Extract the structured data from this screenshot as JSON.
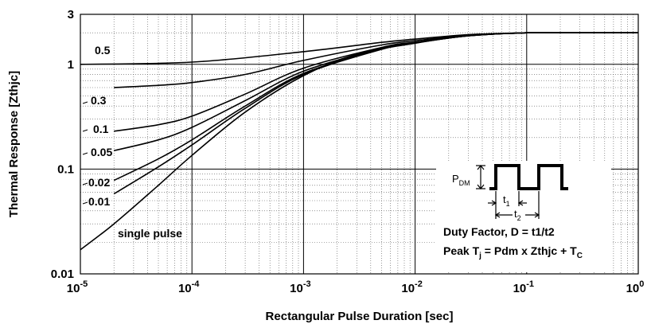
{
  "chart_data": {
    "type": "line",
    "title": "",
    "xlabel": "Rectangular Pulse Duration [sec]",
    "ylabel": "Thermal Response [Zthjc]",
    "xscale": "log",
    "yscale": "log",
    "xlim": [
      1e-05,
      1
    ],
    "ylim": [
      0.01,
      3
    ],
    "grid": true,
    "x_tick_labels": [
      {
        "base": "10",
        "exp": "-5"
      },
      {
        "base": "10",
        "exp": "-4"
      },
      {
        "base": "10",
        "exp": "-3"
      },
      {
        "base": "10",
        "exp": "-2"
      },
      {
        "base": "10",
        "exp": "-1"
      },
      {
        "base": "10",
        "exp": "0"
      }
    ],
    "y_tick_labels": [
      "3",
      "1",
      "0.1",
      "0.01"
    ],
    "series": [
      {
        "name": "0.5",
        "x": [
          1e-05,
          0.0001,
          0.001,
          0.005,
          0.01,
          0.03,
          0.1,
          0.2,
          1
        ],
        "y": [
          1.0,
          1.05,
          1.32,
          1.62,
          1.74,
          1.92,
          2.0,
          2.0,
          2.0
        ]
      },
      {
        "name": "0.3",
        "x": [
          2e-05,
          5e-05,
          0.0001,
          0.0003,
          0.001,
          0.005,
          0.01,
          0.03,
          0.1,
          0.2,
          1
        ],
        "y": [
          0.6,
          0.63,
          0.67,
          0.8,
          1.09,
          1.53,
          1.68,
          1.9,
          2.0,
          2.0,
          2.0
        ]
      },
      {
        "name": "0.1",
        "x": [
          2e-05,
          5e-05,
          0.0001,
          0.0003,
          0.001,
          0.005,
          0.01,
          0.03,
          0.1,
          0.2,
          1
        ],
        "y": [
          0.23,
          0.265,
          0.32,
          0.52,
          0.92,
          1.45,
          1.63,
          1.88,
          2.0,
          2.0,
          2.0
        ]
      },
      {
        "name": "0.05",
        "x": [
          2e-05,
          5e-05,
          0.0001,
          0.0003,
          0.001,
          0.005,
          0.01,
          0.03,
          0.1,
          0.2,
          1
        ],
        "y": [
          0.15,
          0.19,
          0.25,
          0.45,
          0.86,
          1.42,
          1.61,
          1.87,
          2.0,
          2.0,
          2.0
        ]
      },
      {
        "name": "0.02",
        "x": [
          2e-05,
          5e-05,
          0.0001,
          0.0003,
          0.001,
          0.005,
          0.01,
          0.03,
          0.1,
          0.2,
          1
        ],
        "y": [
          0.078,
          0.125,
          0.19,
          0.4,
          0.82,
          1.4,
          1.6,
          1.87,
          2.0,
          2.0,
          2.0
        ]
      },
      {
        "name": "0.01",
        "x": [
          2e-05,
          5e-05,
          0.0001,
          0.0003,
          0.001,
          0.005,
          0.01,
          0.03,
          0.1,
          0.2,
          1
        ],
        "y": [
          0.058,
          0.105,
          0.17,
          0.38,
          0.8,
          1.39,
          1.6,
          1.87,
          2.0,
          2.0,
          2.0
        ]
      },
      {
        "name": "single pulse",
        "x": [
          1e-05,
          2e-05,
          5e-05,
          0.0001,
          0.0003,
          0.001,
          0.003,
          0.01,
          0.03,
          0.1,
          0.2,
          1
        ],
        "y": [
          0.017,
          0.03,
          0.07,
          0.135,
          0.35,
          0.78,
          1.25,
          1.59,
          1.87,
          2.0,
          2.0,
          2.0
        ]
      }
    ],
    "inset": {
      "pdm": {
        "base": "P",
        "sub": "DM"
      },
      "t1": {
        "base": "t",
        "sub": "1"
      },
      "t2": {
        "base": "t",
        "sub": "2"
      },
      "duty_text": "Duty Factor, D = t1/t2",
      "peak_text": {
        "p1": "Peak T",
        "s1": "j",
        "p2": " = Pdm x Zthjc + T",
        "s2": "C"
      }
    }
  }
}
